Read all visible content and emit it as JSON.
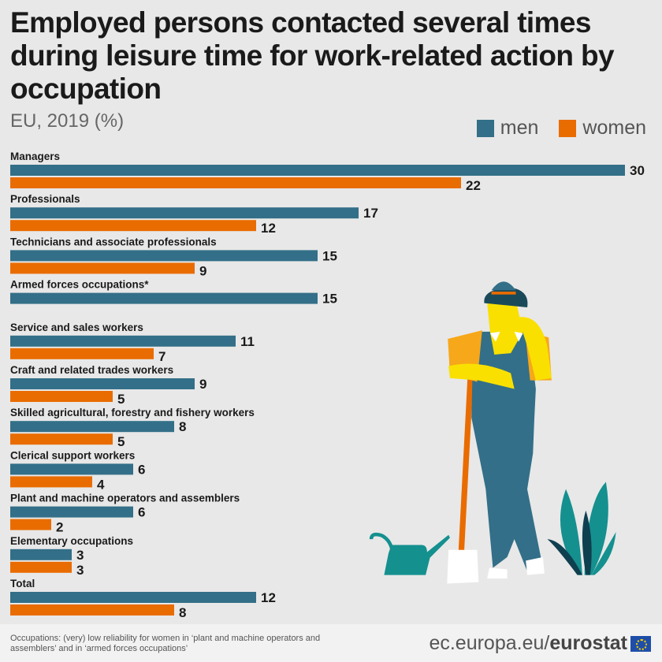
{
  "chart_data": {
    "type": "bar",
    "orientation": "horizontal",
    "title": "Employed persons contacted several times during leisure time for work-related action by occupation",
    "subtitle": "EU, 2019 (%)",
    "xlabel": "",
    "ylabel": "",
    "xlim": [
      0,
      30
    ],
    "grid": false,
    "legend_position": "top-right",
    "categories": [
      "Managers",
      "Professionals",
      "Technicians and associate professionals",
      "Armed forces occupations*",
      "Service and sales workers",
      "Craft and related trades workers",
      "Skilled agricultural, forestry and fishery workers",
      "Clerical support workers",
      "Plant and machine operators and assemblers",
      "Elementary occupations",
      "Total"
    ],
    "series": [
      {
        "name": "men",
        "color": "#336f88",
        "values": [
          30,
          17,
          15,
          15,
          11,
          9,
          8,
          6,
          6,
          3,
          12
        ]
      },
      {
        "name": "women",
        "color": "#e96c00",
        "values": [
          22,
          12,
          9,
          null,
          7,
          5,
          5,
          4,
          2,
          3,
          8
        ]
      }
    ]
  },
  "header": {
    "title": "Employed persons contacted several times during leisure time for work-related action by occupation",
    "subtitle": "EU, 2019 (%)"
  },
  "legend": {
    "men": "men",
    "women": "women"
  },
  "footer": {
    "note": "Occupations: (very) low reliability for women in ‘plant and machine operators and assemblers’ and in ‘armed forces occupations’",
    "brand_prefix": "ec.europa.eu/",
    "brand_name": "eurostat",
    "flag_icon": "eu-flag-icon"
  }
}
